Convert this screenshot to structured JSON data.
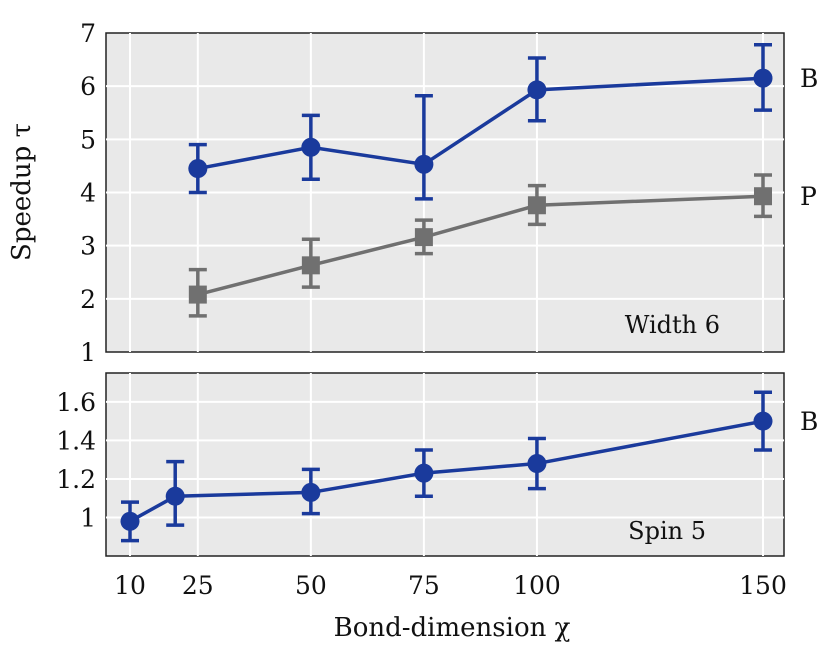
{
  "chart_data": [
    {
      "type": "line",
      "panel": "top",
      "annotation": "Width 6",
      "ylabel": "Speedup τ",
      "ylim": [
        1,
        7
      ],
      "yticks": [
        "1",
        "2",
        "3",
        "4",
        "5",
        "6",
        "7"
      ],
      "xlim": [
        10,
        150
      ],
      "grid": true,
      "legend": "series labels at right edge",
      "series": [
        {
          "name": "B",
          "color": "#1a3a9c",
          "marker": "circle",
          "x": [
            25,
            50,
            75,
            100,
            150
          ],
          "y": [
            4.45,
            4.85,
            4.53,
            5.93,
            6.15
          ],
          "err_low": [
            4.0,
            4.25,
            3.88,
            5.35,
            5.55
          ],
          "err_high": [
            4.9,
            5.45,
            5.82,
            6.53,
            6.78
          ]
        },
        {
          "name": "P",
          "color": "#707070",
          "marker": "square",
          "x": [
            25,
            50,
            75,
            100,
            150
          ],
          "y": [
            2.08,
            2.63,
            3.16,
            3.76,
            3.93
          ],
          "err_low": [
            1.68,
            2.22,
            2.85,
            3.4,
            3.55
          ],
          "err_high": [
            2.55,
            3.12,
            3.48,
            4.13,
            4.33
          ]
        }
      ]
    },
    {
      "type": "line",
      "panel": "bottom",
      "annotation": "Spin 5",
      "ylim": [
        0.8,
        1.75
      ],
      "yticks": [
        "1",
        "1.2",
        "1.4",
        "1.6"
      ],
      "xlabel": "Bond-dimension χ",
      "xticks": [
        "10",
        "25",
        "50",
        "75",
        "100",
        "150"
      ],
      "xlim": [
        10,
        150
      ],
      "grid": true,
      "series": [
        {
          "name": "B",
          "color": "#1a3a9c",
          "marker": "circle",
          "x": [
            10,
            20,
            50,
            75,
            100,
            150
          ],
          "y": [
            0.98,
            1.11,
            1.13,
            1.23,
            1.28,
            1.5
          ],
          "err_low": [
            0.88,
            0.96,
            1.02,
            1.11,
            1.15,
            1.35
          ],
          "err_high": [
            1.08,
            1.29,
            1.25,
            1.35,
            1.41,
            1.65
          ]
        }
      ]
    }
  ]
}
